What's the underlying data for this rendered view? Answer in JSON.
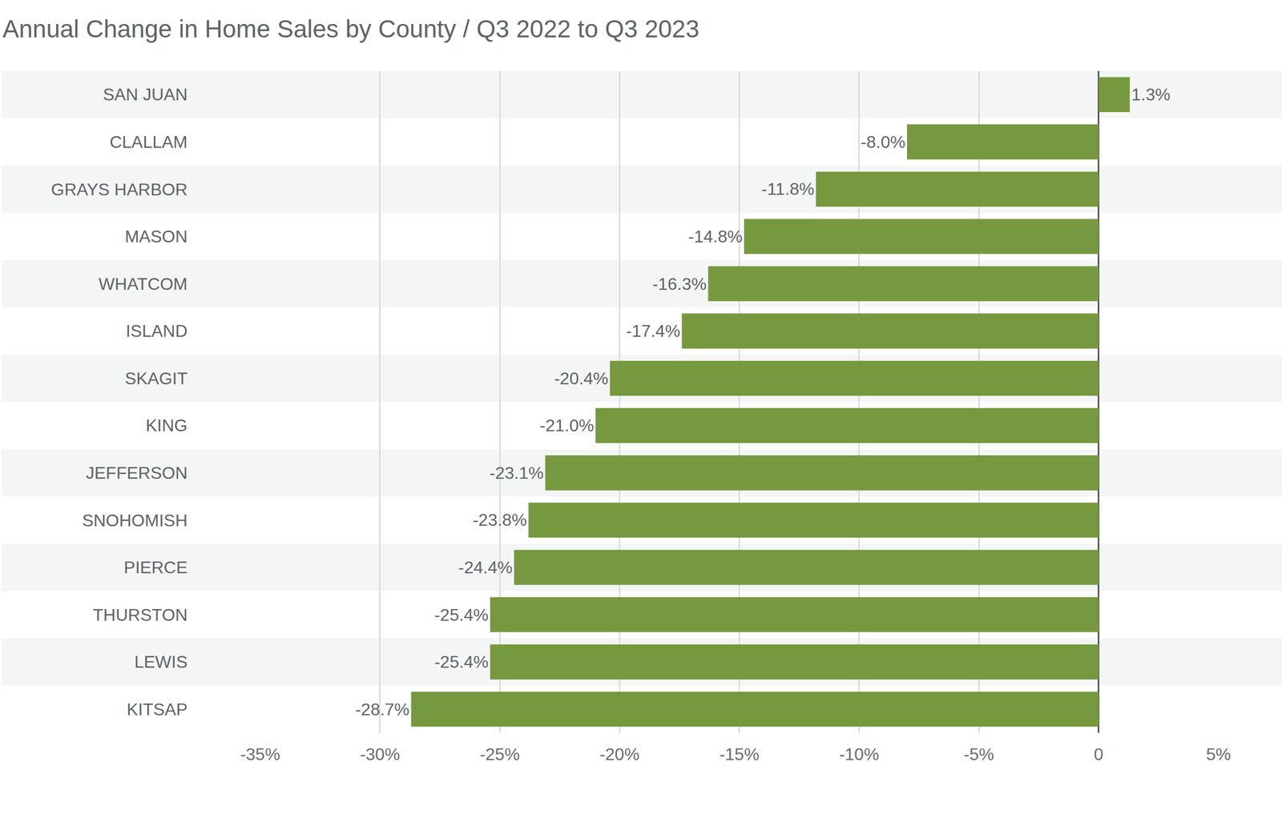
{
  "chart_data": {
    "type": "bar",
    "title": "Annual Change in Home Sales by County / Q3 2022 to Q3 2023",
    "orientation": "horizontal",
    "categories": [
      "SAN JUAN",
      "CLALLAM",
      "GRAYS HARBOR",
      "MASON",
      "WHATCOM",
      "ISLAND",
      "SKAGIT",
      "KING",
      "JEFFERSON",
      "SNOHOMISH",
      "PIERCE",
      "THURSTON",
      "LEWIS",
      "KITSAP"
    ],
    "values": [
      1.3,
      -8.0,
      -11.8,
      -14.8,
      -16.3,
      -17.4,
      -20.4,
      -21.0,
      -23.1,
      -23.8,
      -24.4,
      -25.4,
      -25.4,
      -28.7
    ],
    "value_labels": [
      "1.3%",
      "-8.0%",
      "-11.8%",
      "-14.8%",
      "-16.3%",
      "-17.4%",
      "-20.4%",
      "-21.0%",
      "-23.1%",
      "-23.8%",
      "-24.4%",
      "-25.4%",
      "-25.4%",
      "-28.7%"
    ],
    "data_labels": true,
    "color": "#76983f",
    "xlim": [
      -35,
      5
    ],
    "xticks": [
      {
        "value": -35,
        "label": "-35%"
      },
      {
        "value": -30,
        "label": "-30%"
      },
      {
        "value": -25,
        "label": "-25%"
      },
      {
        "value": -20,
        "label": "-20%"
      },
      {
        "value": -15,
        "label": "-15%"
      },
      {
        "value": -10,
        "label": "-10%"
      },
      {
        "value": -5,
        "label": "-5%"
      },
      0,
      {
        "value": 5,
        "label": "5%"
      }
    ],
    "grid": true
  }
}
